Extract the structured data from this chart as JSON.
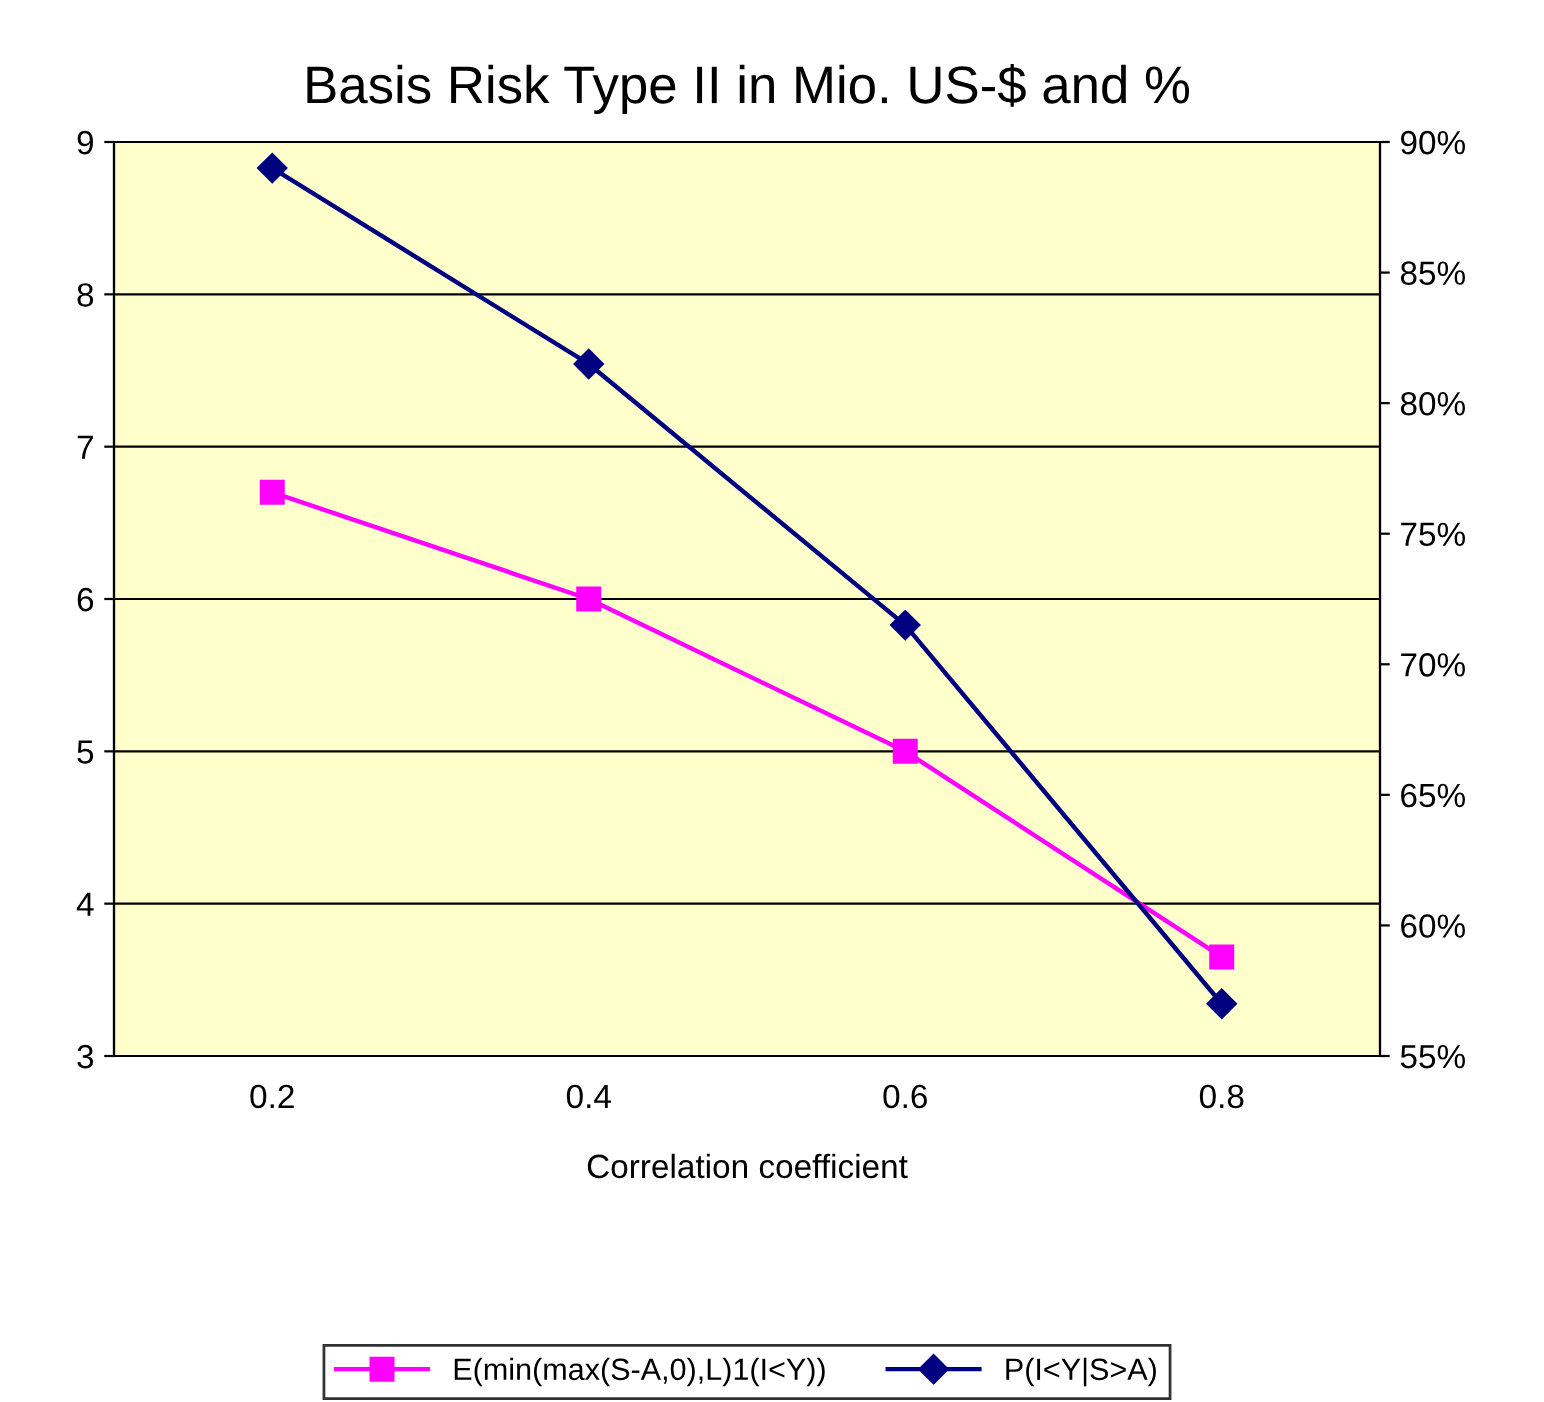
{
  "chart_data": {
    "type": "line",
    "title": "Basis Risk Type II in Mio. US-$ and %",
    "xlabel": "Correlation coefficient",
    "categories": [
      "0.2",
      "0.4",
      "0.6",
      "0.8"
    ],
    "series": [
      {
        "name": "E(min(max(S-A,0),L)1(I<Y))",
        "color": "#ff00ff",
        "values": [
          6.7,
          6.0,
          5.0,
          3.65
        ],
        "marker": "square"
      },
      {
        "name": "P(I<Y|S>A)",
        "color": "#000080",
        "values": [
          89.0,
          81.5,
          71.5,
          57.0
        ],
        "marker": "diamond",
        "axis": "y2"
      }
    ],
    "ylim": [
      3,
      9
    ],
    "yticks": [
      3,
      4,
      5,
      6,
      7,
      8,
      9
    ],
    "y2lim": [
      55,
      90
    ],
    "y2ticks": [
      {
        "value": 55,
        "label": "55%"
      },
      {
        "value": 60,
        "label": "60%"
      },
      {
        "value": 65,
        "label": "65%"
      },
      {
        "value": 70,
        "label": "70%"
      },
      {
        "value": 75,
        "label": "75%"
      },
      {
        "value": 80,
        "label": "80%"
      },
      {
        "value": 85,
        "label": "85%"
      },
      {
        "value": 90,
        "label": "90%"
      }
    ],
    "grid": "y",
    "legend": "bottom",
    "line_style": "solid"
  }
}
